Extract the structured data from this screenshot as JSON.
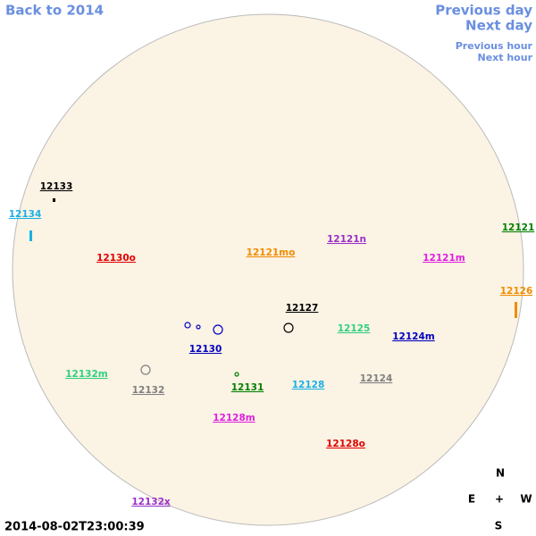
{
  "nav": {
    "back": "Back to 2014",
    "previous_day": "Previous day",
    "next_day": "Next day",
    "previous_hour": "Previous hour",
    "next_hour": "Next hour"
  },
  "timestamp": "2014-08-02T23:00:39",
  "compass": {
    "north": "N",
    "east": "E",
    "center": "+",
    "west": "W",
    "south": "S"
  },
  "regions": [
    {
      "label": "12133",
      "color": "#000000"
    },
    {
      "label": "12134",
      "color": "#1ab0e6"
    },
    {
      "label": "12130o",
      "color": "#e00000"
    },
    {
      "label": "12121mo",
      "color": "#f08c00"
    },
    {
      "label": "12121n",
      "color": "#9b30c8"
    },
    {
      "label": "12121m",
      "color": "#e020e0"
    },
    {
      "label": "12121",
      "color": "#008000"
    },
    {
      "label": "12126",
      "color": "#f08c00"
    },
    {
      "label": "12127",
      "color": "#000000"
    },
    {
      "label": "12125",
      "color": "#30d080"
    },
    {
      "label": "12124m",
      "color": "#0000c0"
    },
    {
      "label": "12130",
      "color": "#0000c0"
    },
    {
      "label": "12132m",
      "color": "#30d080"
    },
    {
      "label": "12132",
      "color": "#808080"
    },
    {
      "label": "12131",
      "color": "#008000"
    },
    {
      "label": "12128",
      "color": "#1ab0e6"
    },
    {
      "label": "12124",
      "color": "#808080"
    },
    {
      "label": "12128m",
      "color": "#e020e0"
    },
    {
      "label": "12128o",
      "color": "#e00000"
    },
    {
      "label": "12132x",
      "color": "#9b30c8"
    }
  ]
}
